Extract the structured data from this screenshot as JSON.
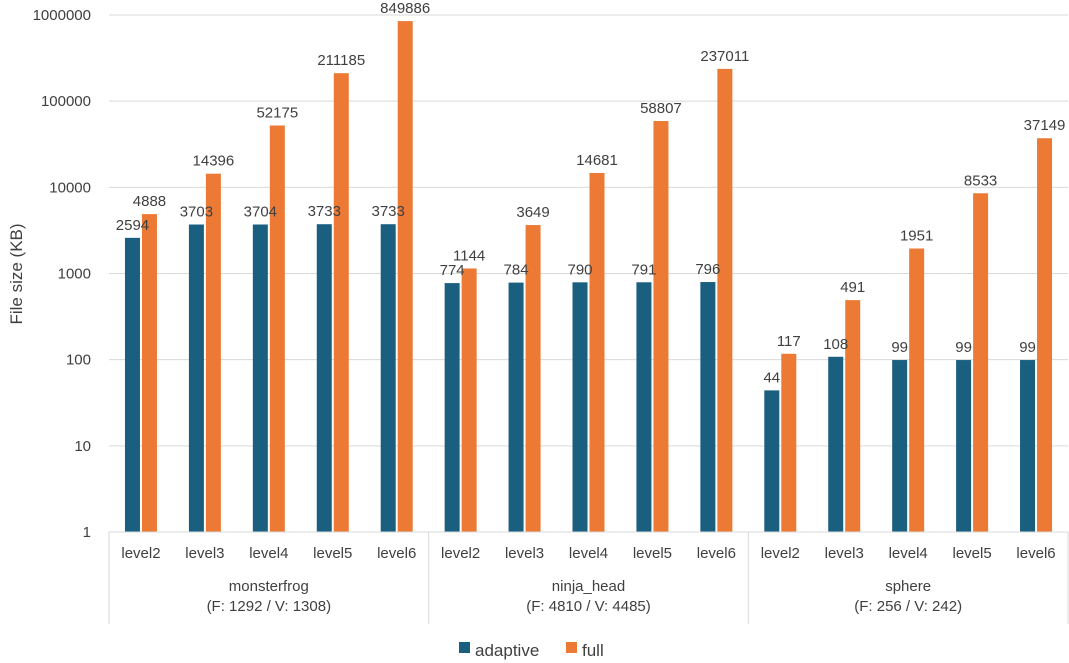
{
  "chart_data": {
    "type": "bar",
    "ylabel": "File size (KB)",
    "yscale": "log",
    "ylim": [
      1,
      1000000
    ],
    "yticks": [
      "1",
      "10",
      "100",
      "1000",
      "10000",
      "100000",
      "1000000"
    ],
    "grid": true,
    "legend_position": "bottom",
    "groups": [
      {
        "name_lines": [
          "monsterfrog",
          "(F: 1292 / V: 1308)"
        ],
        "categories": [
          "level2",
          "level3",
          "level4",
          "level5",
          "level6"
        ],
        "adaptive": [
          2594,
          3703,
          3704,
          3733,
          3733
        ],
        "full": [
          4888,
          14396,
          52175,
          211185,
          849886
        ]
      },
      {
        "name_lines": [
          "ninja_head",
          "(F: 4810 / V: 4485)"
        ],
        "categories": [
          "level2",
          "level3",
          "level4",
          "level5",
          "level6"
        ],
        "adaptive": [
          774,
          784,
          790,
          791,
          796
        ],
        "full": [
          1144,
          3649,
          14681,
          58807,
          237011
        ]
      },
      {
        "name_lines": [
          "sphere",
          "(F: 256 / V: 242)"
        ],
        "categories": [
          "level2",
          "level3",
          "level4",
          "level5",
          "level6"
        ],
        "adaptive": [
          44,
          108,
          99,
          99,
          99
        ],
        "full": [
          117,
          491,
          1951,
          8533,
          37149
        ]
      }
    ],
    "series": [
      {
        "key": "adaptive",
        "name": "adaptive",
        "color": "#1a5e80"
      },
      {
        "key": "full",
        "name": "full",
        "color": "#ec7a35"
      }
    ]
  }
}
